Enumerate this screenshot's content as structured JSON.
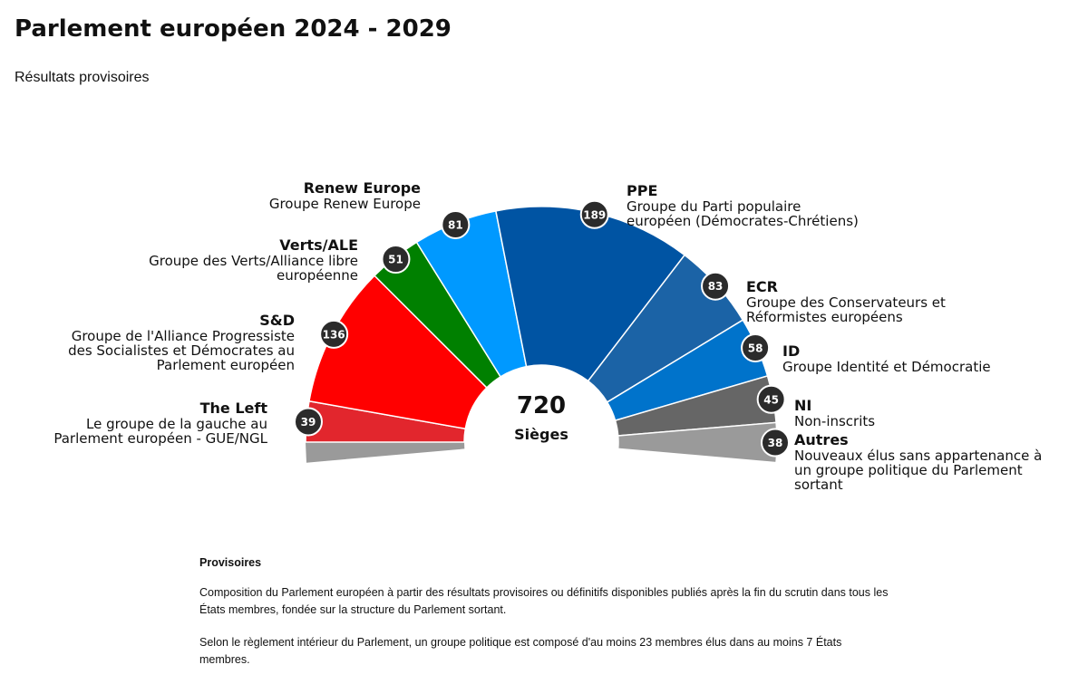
{
  "chart_data": {
    "type": "parliament",
    "title": "Parlement européen 2024 - 2029",
    "subtitle": "Résultats provisoires",
    "total": 720,
    "total_label": "Sièges",
    "groups": [
      {
        "name": "The Left",
        "description": [
          "Le groupe de la gauche au",
          "Parlement européen - GUE/NGL"
        ],
        "value": 39,
        "color": "#e2262d"
      },
      {
        "name": "S&D",
        "description": [
          "Groupe de l'Alliance Progressiste",
          "des Socialistes et Démocrates au",
          "Parlement européen"
        ],
        "value": 136,
        "color": "#ff0000"
      },
      {
        "name": "Verts/ALE",
        "description": [
          "Groupe des Verts/Alliance libre",
          "européenne"
        ],
        "value": 51,
        "color": "#008000"
      },
      {
        "name": "Renew Europe",
        "description": [
          "Groupe Renew Europe"
        ],
        "value": 81,
        "color": "#0099ff"
      },
      {
        "name": "PPE",
        "description": [
          "Groupe du Parti populaire",
          "européen (Démocrates-Chrétiens)"
        ],
        "value": 189,
        "color": "#0054a3"
      },
      {
        "name": "ECR",
        "description": [
          "Groupe des Conservateurs et",
          "Réformistes européens"
        ],
        "value": 83,
        "color": "#1b63a6"
      },
      {
        "name": "ID",
        "description": [
          "Groupe Identité et Démocratie"
        ],
        "value": 58,
        "color": "#0073cb"
      },
      {
        "name": "NI",
        "description": [
          "Non-inscrits"
        ],
        "value": 45,
        "color": "#666666"
      },
      {
        "name": "Autres",
        "description": [
          "Nouveaux élus sans appartenance à",
          "un groupe politique du Parlement",
          "sortant"
        ],
        "value": 38,
        "color": "#9a9a9a"
      }
    ]
  },
  "notes": {
    "heading": "Provisoires",
    "paragraphs": [
      "Composition du Parlement européen à partir des résultats provisoires ou définitifs disponibles publiés après la fin du scrutin dans tous les États membres, fondée sur la structure du Parlement sortant.",
      "Selon le règlement intérieur du Parlement, un groupe politique est composé d'au moins 23 membres élus dans au moins 7 États membres."
    ]
  }
}
